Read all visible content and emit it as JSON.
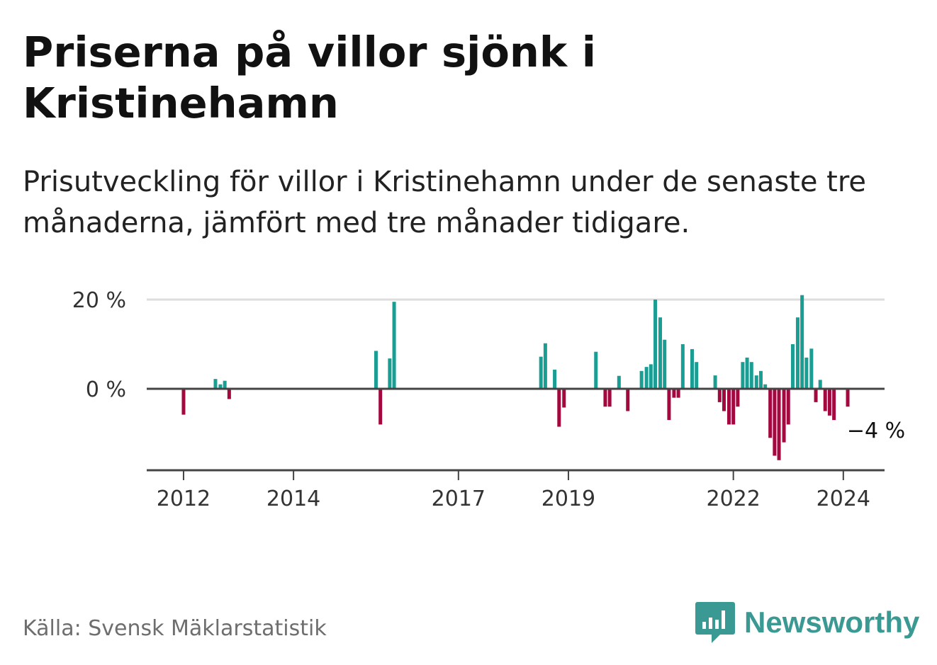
{
  "title": "Priserna på villor sjönk i Kristinehamn",
  "subtitle": "Prisutveckling för villor i Kristinehamn under de senaste tre månaderna, jämfört med tre månader tidigare.",
  "source": "Källa: Svensk Mäklarstatistik",
  "brand": "Newsworthy",
  "colors": {
    "positive": "#1a9e94",
    "negative": "#a3093f",
    "brand": "#3a9a93",
    "gridline": "#dddddd",
    "axis": "#444444"
  },
  "chart_data": {
    "type": "bar",
    "title": "Priserna på villor sjönk i Kristinehamn",
    "ylabel": "",
    "xlabel": "",
    "ylim": [
      -18,
      20
    ],
    "y_ticks": [
      {
        "value": 0,
        "label": "0 %"
      },
      {
        "value": 20,
        "label": "20 %"
      }
    ],
    "x_range": [
      2011.33,
      2024.75
    ],
    "x_ticks": [
      {
        "value": 2012,
        "label": "2012"
      },
      {
        "value": 2014,
        "label": "2014"
      },
      {
        "value": 2017,
        "label": "2017"
      },
      {
        "value": 2019,
        "label": "2019"
      },
      {
        "value": 2022,
        "label": "2022"
      },
      {
        "value": 2024,
        "label": "2024"
      }
    ],
    "annotation": {
      "label": "−4 %",
      "x": 2024.08,
      "value": -4
    },
    "series": [
      {
        "name": "Prisutveckling",
        "points": [
          {
            "x": 2012.0,
            "y": -5.8
          },
          {
            "x": 2012.58,
            "y": 2.2
          },
          {
            "x": 2012.67,
            "y": 1.0
          },
          {
            "x": 2012.75,
            "y": 1.8
          },
          {
            "x": 2012.83,
            "y": -2.3
          },
          {
            "x": 2015.5,
            "y": 8.5
          },
          {
            "x": 2015.58,
            "y": -8.0
          },
          {
            "x": 2015.75,
            "y": 6.8
          },
          {
            "x": 2015.83,
            "y": 19.5
          },
          {
            "x": 2018.5,
            "y": 7.2
          },
          {
            "x": 2018.58,
            "y": 10.2
          },
          {
            "x": 2018.75,
            "y": 4.3
          },
          {
            "x": 2018.83,
            "y": -8.5
          },
          {
            "x": 2018.92,
            "y": -4.2
          },
          {
            "x": 2019.5,
            "y": 8.3
          },
          {
            "x": 2019.67,
            "y": -4.0
          },
          {
            "x": 2019.75,
            "y": -4.0
          },
          {
            "x": 2019.92,
            "y": 2.9
          },
          {
            "x": 2020.08,
            "y": -5.0
          },
          {
            "x": 2020.33,
            "y": 4.0
          },
          {
            "x": 2020.42,
            "y": 4.9
          },
          {
            "x": 2020.5,
            "y": 5.5
          },
          {
            "x": 2020.58,
            "y": 20.0
          },
          {
            "x": 2020.67,
            "y": 16.0
          },
          {
            "x": 2020.75,
            "y": 11.0
          },
          {
            "x": 2020.83,
            "y": -7.0
          },
          {
            "x": 2020.92,
            "y": -2.0
          },
          {
            "x": 2021.0,
            "y": -2.0
          },
          {
            "x": 2021.08,
            "y": 10.0
          },
          {
            "x": 2021.25,
            "y": 8.9
          },
          {
            "x": 2021.33,
            "y": 6.0
          },
          {
            "x": 2021.67,
            "y": 3.0
          },
          {
            "x": 2021.75,
            "y": -3.0
          },
          {
            "x": 2021.83,
            "y": -5.0
          },
          {
            "x": 2021.92,
            "y": -8.0
          },
          {
            "x": 2022.0,
            "y": -8.0
          },
          {
            "x": 2022.08,
            "y": -4.0
          },
          {
            "x": 2022.17,
            "y": 6.0
          },
          {
            "x": 2022.25,
            "y": 7.0
          },
          {
            "x": 2022.33,
            "y": 6.0
          },
          {
            "x": 2022.42,
            "y": 3.0
          },
          {
            "x": 2022.5,
            "y": 4.0
          },
          {
            "x": 2022.58,
            "y": 1.0
          },
          {
            "x": 2022.67,
            "y": -11.0
          },
          {
            "x": 2022.75,
            "y": -15.0
          },
          {
            "x": 2022.83,
            "y": -16.0
          },
          {
            "x": 2022.92,
            "y": -12.0
          },
          {
            "x": 2023.0,
            "y": -8.0
          },
          {
            "x": 2023.08,
            "y": 10.0
          },
          {
            "x": 2023.17,
            "y": 16.0
          },
          {
            "x": 2023.25,
            "y": 21.0
          },
          {
            "x": 2023.33,
            "y": 7.0
          },
          {
            "x": 2023.42,
            "y": 9.0
          },
          {
            "x": 2023.5,
            "y": -3.0
          },
          {
            "x": 2023.58,
            "y": 2.0
          },
          {
            "x": 2023.67,
            "y": -5.0
          },
          {
            "x": 2023.75,
            "y": -6.0
          },
          {
            "x": 2023.83,
            "y": -7.0
          },
          {
            "x": 2024.08,
            "y": -4.0
          }
        ]
      }
    ]
  }
}
